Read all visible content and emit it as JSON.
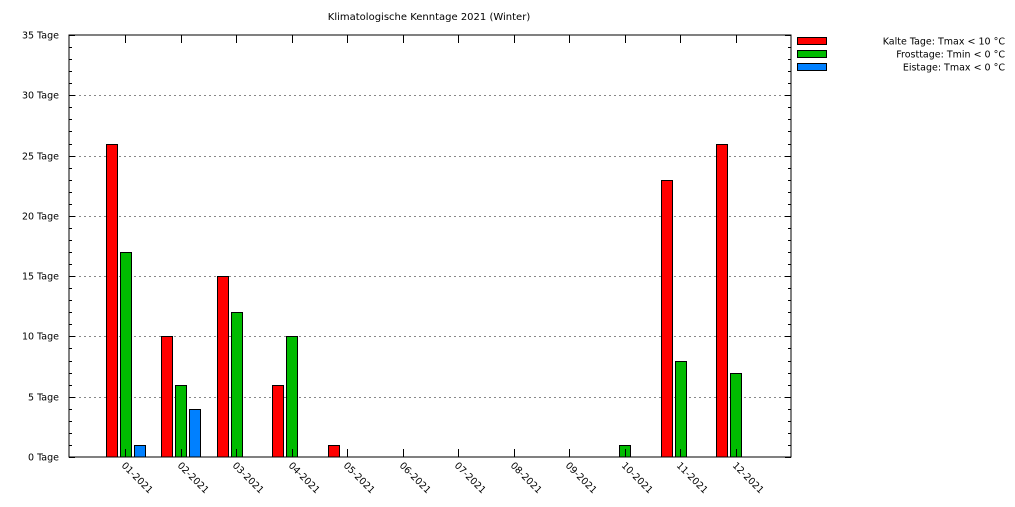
{
  "chart_data": {
    "type": "bar",
    "title": "Klimatologische Kenntage 2021 (Winter)",
    "xlabel": "",
    "ylabel": "",
    "ylim": [
      0,
      35
    ],
    "y_ticks": [
      {
        "value": 0,
        "label": "0 Tage"
      },
      {
        "value": 5,
        "label": "5 Tage"
      },
      {
        "value": 10,
        "label": "10 Tage"
      },
      {
        "value": 15,
        "label": "15 Tage"
      },
      {
        "value": 20,
        "label": "20 Tage"
      },
      {
        "value": 25,
        "label": "25 Tage"
      },
      {
        "value": 30,
        "label": "30 Tage"
      },
      {
        "value": 35,
        "label": "35 Tage"
      }
    ],
    "grid": true,
    "legend_position": "top-right",
    "categories": [
      "01-2021",
      "02-2021",
      "03-2021",
      "04-2021",
      "05-2021",
      "06-2021",
      "07-2021",
      "08-2021",
      "09-2021",
      "10-2021",
      "11-2021",
      "12-2021"
    ],
    "series": [
      {
        "name": "Kalte Tage: Tmax < 10 °C",
        "color": "#ff0000",
        "values": [
          26,
          10,
          15,
          6,
          1,
          0,
          0,
          0,
          0,
          0,
          23,
          26
        ]
      },
      {
        "name": "Frosttage: Tmin < 0 °C",
        "color": "#00bb00",
        "values": [
          17,
          6,
          12,
          10,
          0,
          0,
          0,
          0,
          0,
          1,
          8,
          7
        ]
      },
      {
        "name": "Eistage: Tmax < 0 °C",
        "color": "#0080ff",
        "values": [
          1,
          4,
          0,
          0,
          0,
          0,
          0,
          0,
          0,
          0,
          0,
          0
        ]
      }
    ]
  }
}
